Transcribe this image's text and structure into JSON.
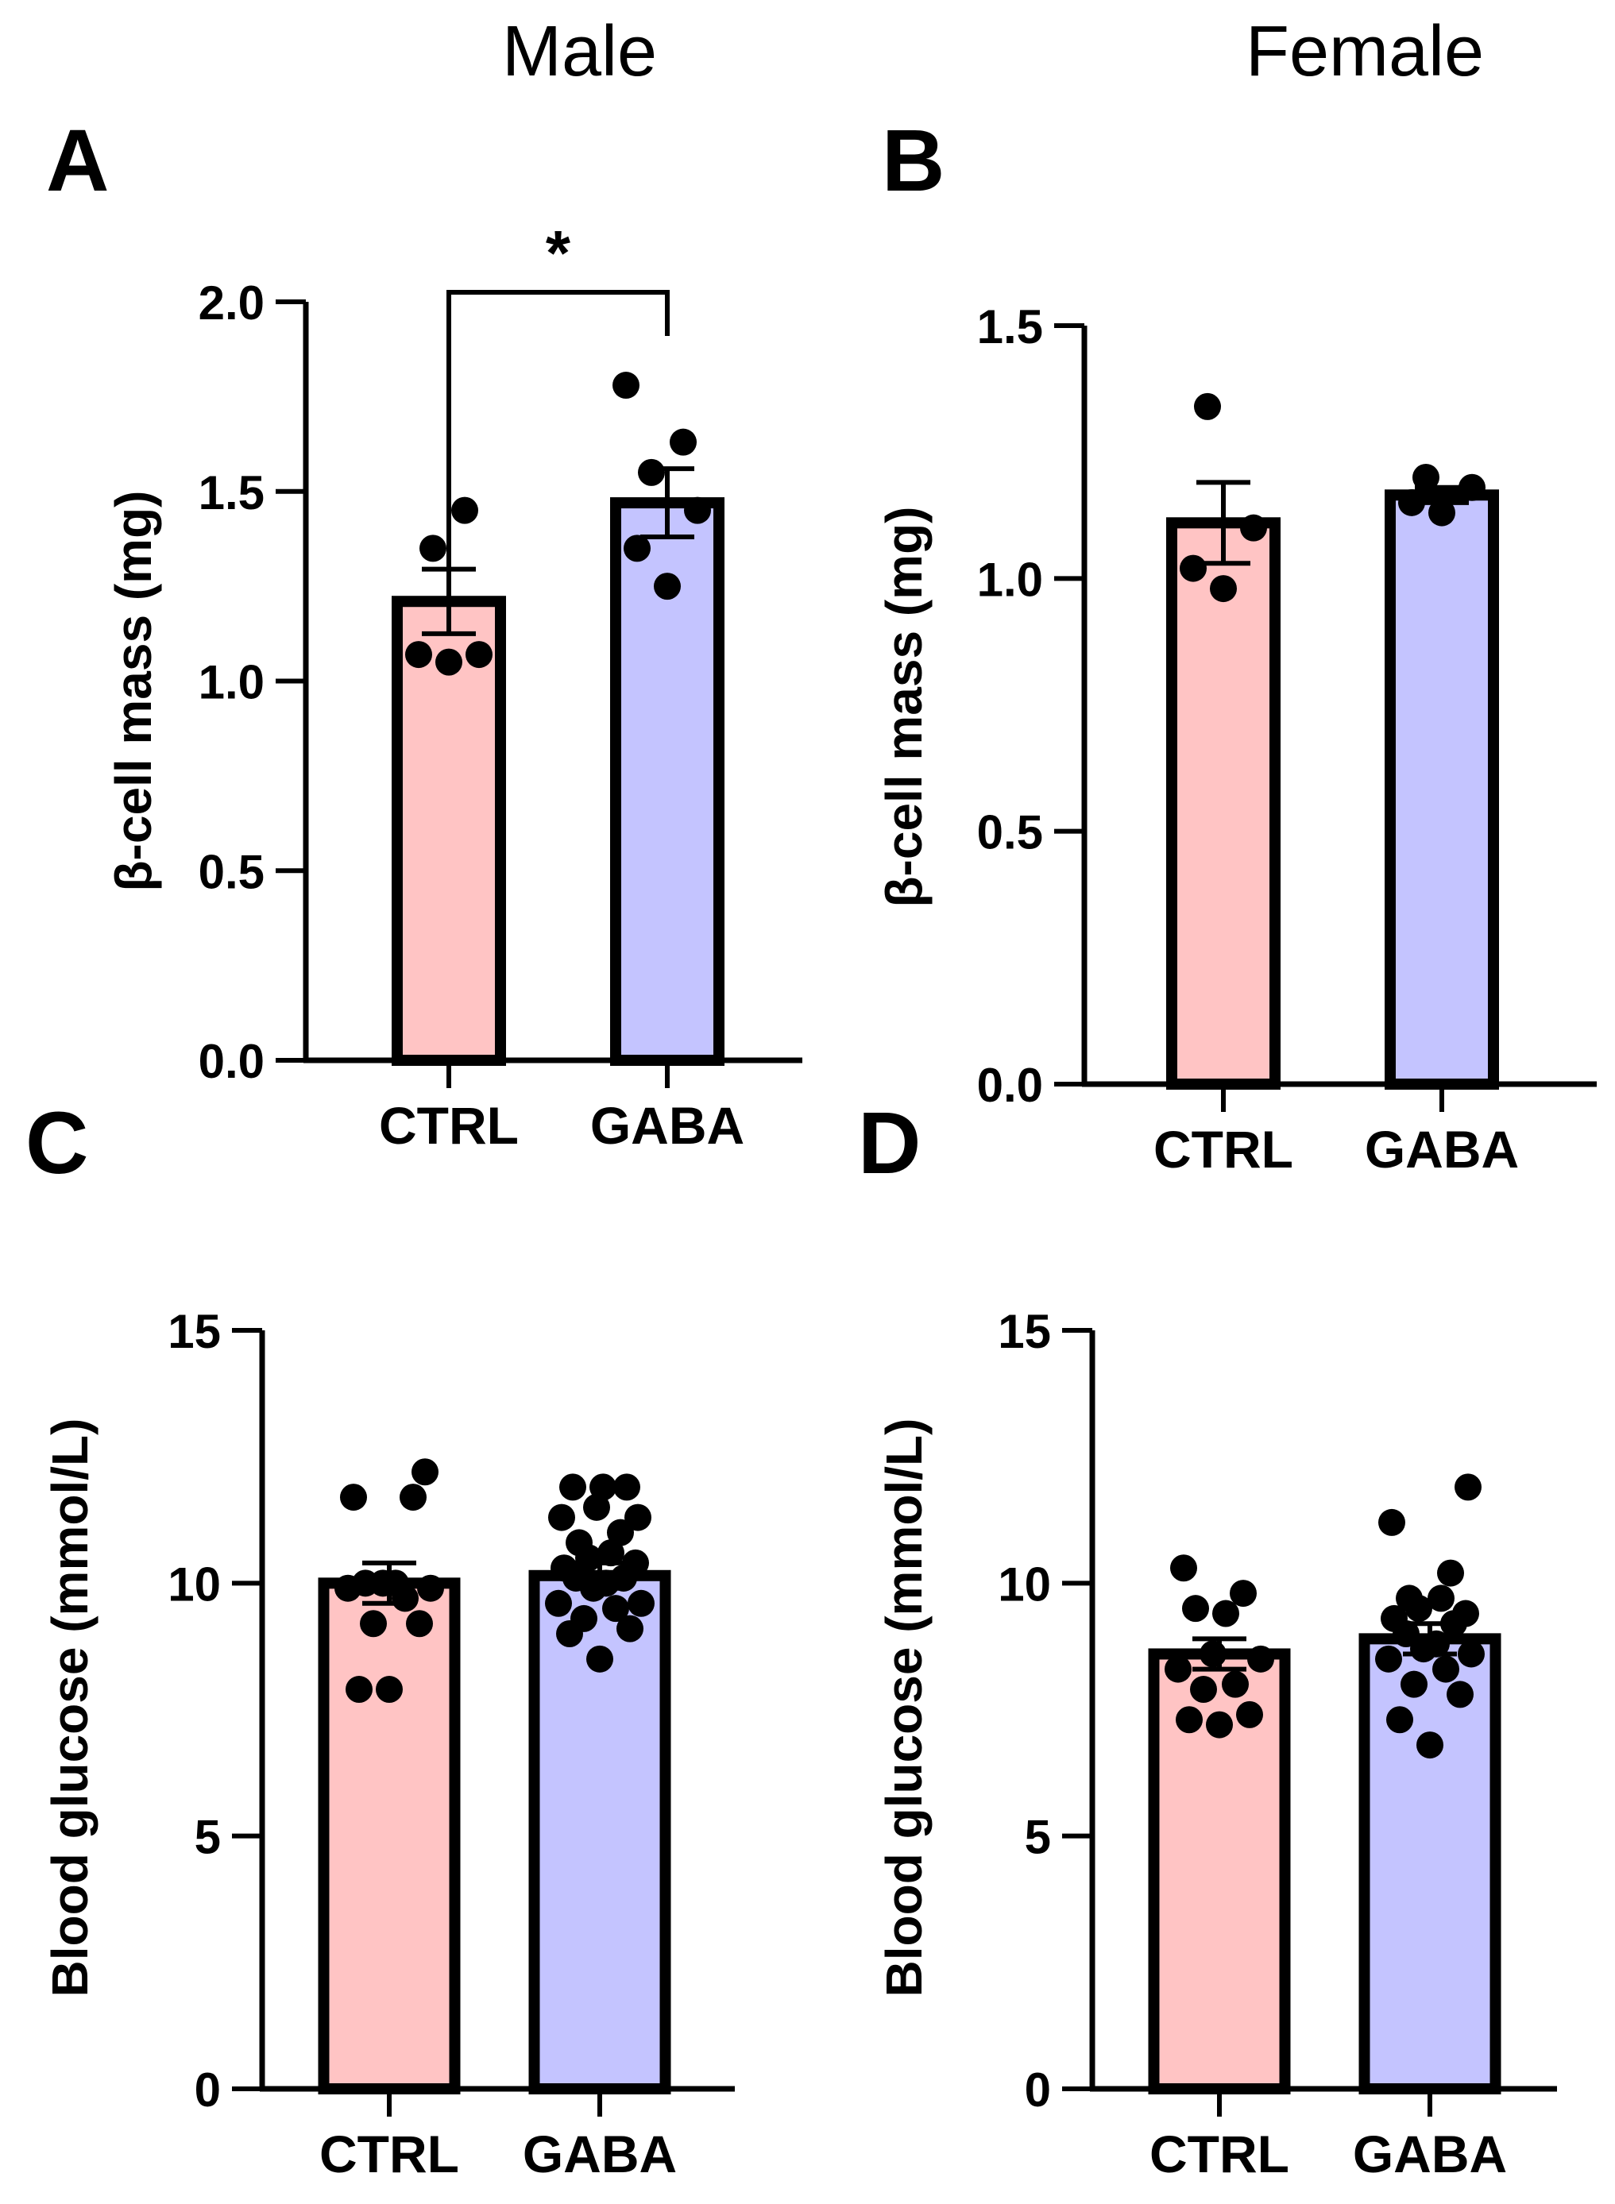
{
  "column_headers": {
    "male": "Male",
    "female": "Female"
  },
  "colors": {
    "ctrl": "#ffc4c4",
    "gaba": "#c4c4ff",
    "stroke": "#000000"
  },
  "chart_data": [
    {
      "panel": "A",
      "type": "bar",
      "group": "Male",
      "ylabel": "β-cell mass (mg)",
      "ylim": [
        0,
        2.0
      ],
      "yticks": [
        0.0,
        0.5,
        1.0,
        1.5,
        2.0
      ],
      "ytick_labels": [
        "0.0",
        "0.5",
        "1.0",
        "1.5",
        "2.0"
      ],
      "categories": [
        "CTRL",
        "GABA"
      ],
      "means": [
        1.21,
        1.47
      ],
      "sem": [
        0.085,
        0.09
      ],
      "points": [
        [
          1.05,
          1.07,
          1.07,
          1.35,
          1.45
        ],
        [
          1.25,
          1.35,
          1.45,
          1.55,
          1.63,
          1.78
        ]
      ],
      "significance": {
        "between": [
          0,
          1
        ],
        "label": "*"
      }
    },
    {
      "panel": "B",
      "type": "bar",
      "group": "Female",
      "ylabel": "β-cell mass (mg)",
      "ylim": [
        0,
        1.5
      ],
      "yticks": [
        0.0,
        0.5,
        1.0,
        1.5
      ],
      "ytick_labels": [
        "0.0",
        "0.5",
        "1.0",
        "1.5"
      ],
      "categories": [
        "CTRL",
        "GABA"
      ],
      "means": [
        1.11,
        1.165
      ],
      "sem": [
        0.08,
        0.015
      ],
      "points": [
        [
          0.98,
          1.02,
          1.1,
          1.34
        ],
        [
          1.13,
          1.15,
          1.18,
          1.2
        ]
      ]
    },
    {
      "panel": "C",
      "type": "bar",
      "group": "Male",
      "ylabel": "Blood glucose  (mmol/L)",
      "ylim": [
        0,
        15
      ],
      "yticks": [
        0,
        5,
        10,
        15
      ],
      "ytick_labels": [
        "0",
        "5",
        "10",
        "15"
      ],
      "categories": [
        "CTRL",
        "GABA"
      ],
      "means": [
        10.0,
        10.15
      ],
      "sem": [
        0.4,
        0.25
      ],
      "points": [
        [
          7.9,
          7.9,
          9.2,
          9.2,
          9.7,
          9.9,
          9.9,
          10.0,
          10.0,
          10.0,
          11.7,
          11.7,
          12.2
        ],
        [
          8.5,
          9.0,
          9.1,
          9.3,
          9.5,
          9.6,
          9.6,
          9.9,
          10.0,
          10.1,
          10.1,
          10.3,
          10.4,
          10.5,
          10.6,
          10.8,
          11.0,
          11.3,
          11.3,
          11.5,
          11.9,
          11.9,
          11.9
        ]
      ]
    },
    {
      "panel": "D",
      "type": "bar",
      "group": "Female",
      "ylabel": "Blood glucose  (mmol/L)",
      "ylim": [
        0,
        15
      ],
      "yticks": [
        0,
        5,
        10,
        15
      ],
      "ytick_labels": [
        "0",
        "5",
        "10",
        "15"
      ],
      "categories": [
        "CTRL",
        "GABA"
      ],
      "means": [
        8.6,
        8.9
      ],
      "sem": [
        0.3,
        0.3
      ],
      "points": [
        [
          7.2,
          7.3,
          7.4,
          7.9,
          8.0,
          8.3,
          8.5,
          8.6,
          9.4,
          9.5,
          9.8,
          10.3
        ],
        [
          6.8,
          7.3,
          7.8,
          8.0,
          8.3,
          8.5,
          8.6,
          8.7,
          8.8,
          9.0,
          9.2,
          9.3,
          9.4,
          9.5,
          9.7,
          9.7,
          10.2,
          11.2,
          11.9
        ]
      ]
    }
  ]
}
